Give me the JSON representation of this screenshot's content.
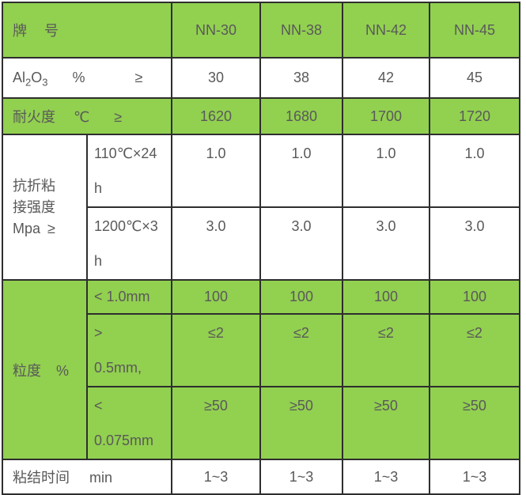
{
  "colors": {
    "green": "#92d050",
    "border": "#2e2e2e",
    "text": "#595959",
    "white": "#ffffff"
  },
  "header": {
    "brand_label": "牌　号",
    "models": [
      "NN-30",
      "NN-38",
      "NN-42",
      "NN-45"
    ]
  },
  "rows": {
    "al2o3": {
      "formula": {
        "el1": "Al",
        "s1": "2",
        "el2": "O",
        "s2": "3"
      },
      "unit": "%",
      "op": "≥",
      "values": [
        "30",
        "38",
        "42",
        "45"
      ]
    },
    "refractoriness": {
      "label": "耐火度",
      "unit": "℃",
      "op": "≥",
      "values": [
        "1620",
        "1680",
        "1700",
        "1720"
      ]
    },
    "strength": {
      "label": "抗折粘\n接强度\nMpa ≥",
      "sub_rows": [
        {
          "condition": "110℃×24\nh",
          "values": [
            "1.0",
            "1.0",
            "1.0",
            "1.0"
          ]
        },
        {
          "condition": "1200℃×3\nh",
          "values": [
            "3.0",
            "3.0",
            "3.0",
            "3.0"
          ]
        }
      ]
    },
    "granularity": {
      "label": "粒度",
      "unit": "%",
      "sub_rows": [
        {
          "condition": "< 1.0mm",
          "values": [
            "100",
            "100",
            "100",
            "100"
          ]
        },
        {
          "condition": ">\n0.5mm,",
          "values": [
            "≤2",
            "≤2",
            "≤2",
            "≤2"
          ]
        },
        {
          "condition": "<\n0.075mm",
          "values": [
            "≥50",
            "≥50",
            "≥50",
            "≥50"
          ]
        }
      ]
    },
    "bonding_time": {
      "label": "粘结时间",
      "unit": "min",
      "values": [
        "1~3",
        "1~3",
        "1~3",
        "1~3"
      ]
    }
  }
}
